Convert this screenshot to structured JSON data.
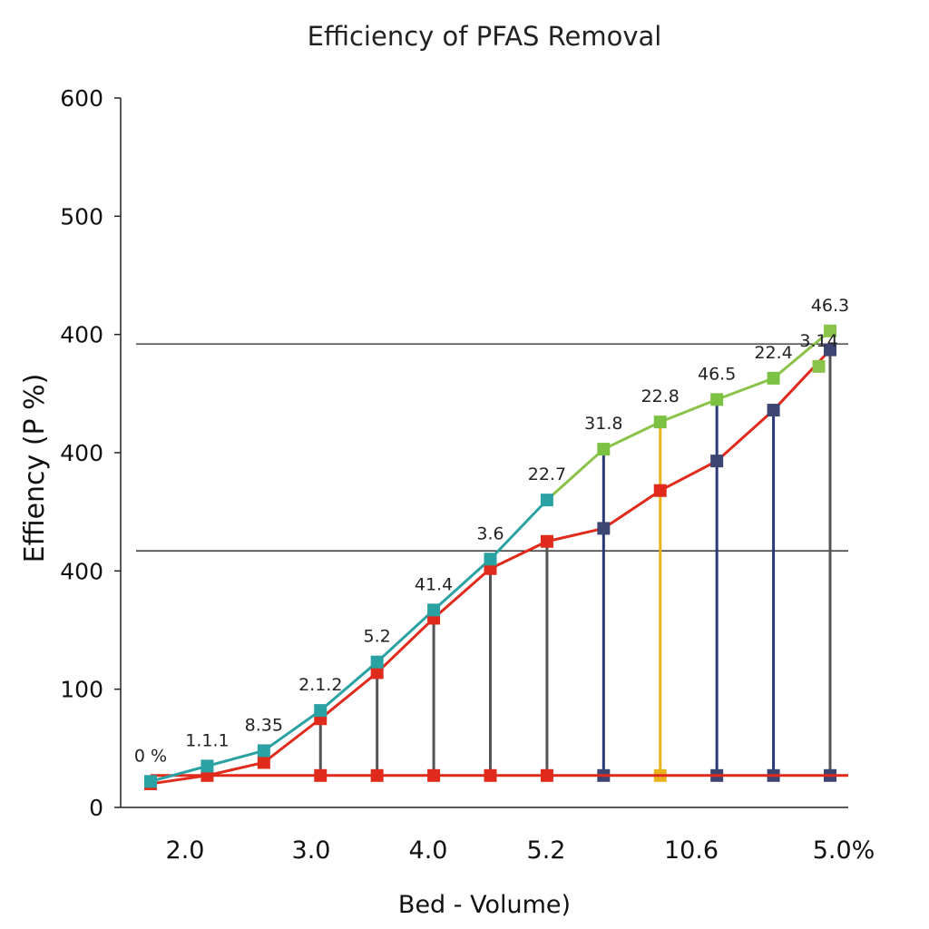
{
  "chart_data": {
    "type": "line",
    "title": "Efficiency of PFAS Removal",
    "xlabel": "Bed - Volume)",
    "ylabel": "Effiency (P %)",
    "x_tick_labels": [
      "2.0",
      "3.0",
      "4.0",
      "5.2",
      "10.6",
      "5.0%"
    ],
    "y_tick_labels": [
      "0",
      "100",
      "400",
      "400",
      "400",
      "500",
      "600"
    ],
    "ylim": [
      0,
      600
    ],
    "reference_lines": [
      392,
      217
    ],
    "grid": false,
    "legend": "none",
    "x": [
      1,
      2,
      3,
      4,
      5,
      6,
      7,
      8,
      9,
      10,
      11,
      12,
      13
    ],
    "series": [
      {
        "color": "#2aa1a3",
        "values": [
          22,
          35,
          48,
          82,
          123,
          167,
          210,
          260,
          null,
          null,
          null,
          null,
          null
        ]
      },
      {
        "color": "#8bc34a",
        "values": [
          null,
          null,
          null,
          null,
          null,
          null,
          null,
          260,
          303,
          326,
          345,
          363,
          403
        ]
      },
      {
        "color": "#e02a1c",
        "values": [
          20,
          27,
          38,
          75,
          114,
          160,
          202,
          225,
          236,
          268,
          293,
          336,
          387
        ]
      }
    ],
    "markers": [
      {
        "x": 1,
        "y": 20,
        "color": "#e02a1c"
      },
      {
        "x": 1,
        "y": 22,
        "color": "#2aa1a3"
      },
      {
        "x": 2,
        "y": 27,
        "color": "#e02a1c"
      },
      {
        "x": 2,
        "y": 35,
        "color": "#2aa1a3"
      },
      {
        "x": 3,
        "y": 38,
        "color": "#e02a1c"
      },
      {
        "x": 3,
        "y": 48,
        "color": "#2aa1a3"
      },
      {
        "x": 4,
        "y": 75,
        "color": "#e02a1c"
      },
      {
        "x": 4,
        "y": 82,
        "color": "#2aa1a3"
      },
      {
        "x": 5,
        "y": 114,
        "color": "#e02a1c"
      },
      {
        "x": 5,
        "y": 123,
        "color": "#2aa1a3"
      },
      {
        "x": 6,
        "y": 160,
        "color": "#e02a1c"
      },
      {
        "x": 6,
        "y": 167,
        "color": "#2aa1a3"
      },
      {
        "x": 7,
        "y": 202,
        "color": "#e02a1c"
      },
      {
        "x": 7,
        "y": 210,
        "color": "#2aa1a3"
      },
      {
        "x": 8,
        "y": 225,
        "color": "#e02a1c"
      },
      {
        "x": 8,
        "y": 260,
        "color": "#2aa1a3"
      },
      {
        "x": 9,
        "y": 236,
        "color": "#3d4672"
      },
      {
        "x": 9,
        "y": 303,
        "color": "#7cc242"
      },
      {
        "x": 10,
        "y": 268,
        "color": "#e02a1c"
      },
      {
        "x": 10,
        "y": 326,
        "color": "#7cc242"
      },
      {
        "x": 11,
        "y": 293,
        "color": "#3d4672"
      },
      {
        "x": 11,
        "y": 345,
        "color": "#7cc242"
      },
      {
        "x": 12,
        "y": 336,
        "color": "#3d4672"
      },
      {
        "x": 12,
        "y": 363,
        "color": "#7cc242"
      },
      {
        "x": 13,
        "y": 403,
        "color": "#8bc34a"
      },
      {
        "x": 13,
        "y": 387,
        "color": "#3d4672"
      },
      {
        "x": 12.8,
        "y": 373,
        "color": "#8bc34a"
      }
    ],
    "drop_lines": [
      {
        "x": 4,
        "top": 75,
        "color": "#555555",
        "foot_color": "#e02a1c"
      },
      {
        "x": 5,
        "top": 114,
        "color": "#555555",
        "foot_color": "#e02a1c"
      },
      {
        "x": 6,
        "top": 160,
        "color": "#555555",
        "foot_color": "#e02a1c"
      },
      {
        "x": 7,
        "top": 202,
        "color": "#555555",
        "foot_color": "#e02a1c"
      },
      {
        "x": 8,
        "top": 225,
        "color": "#555555",
        "foot_color": "#e02a1c"
      },
      {
        "x": 9,
        "top": 303,
        "color": "#2a3a78",
        "foot_color": "#3d4672"
      },
      {
        "x": 10,
        "top": 326,
        "color": "#e9b31d",
        "foot_color": "#e9b31d"
      },
      {
        "x": 11,
        "top": 345,
        "color": "#2a3a78",
        "foot_color": "#3d4672"
      },
      {
        "x": 12,
        "top": 336,
        "color": "#2a3a78",
        "foot_color": "#3d4672"
      },
      {
        "x": 13,
        "top": 387,
        "color": "#555555",
        "foot_color": "#3d4672"
      }
    ],
    "baseline": {
      "value": 27,
      "color": "#e02a1c"
    },
    "data_labels": [
      {
        "text": "0 %",
        "x": 1,
        "y": 22
      },
      {
        "text": "1.1.1",
        "x": 2,
        "y": 35
      },
      {
        "text": "8.35",
        "x": 3,
        "y": 48
      },
      {
        "text": "2.1.2",
        "x": 4,
        "y": 82
      },
      {
        "text": "5.2",
        "x": 5,
        "y": 123
      },
      {
        "text": "41.4",
        "x": 6,
        "y": 167
      },
      {
        "text": "3.6",
        "x": 7,
        "y": 210
      },
      {
        "text": "22.7",
        "x": 8,
        "y": 260
      },
      {
        "text": "31.8",
        "x": 9,
        "y": 303
      },
      {
        "text": "22.8",
        "x": 10,
        "y": 326
      },
      {
        "text": "46.5",
        "x": 11,
        "y": 345
      },
      {
        "text": "22.4",
        "x": 12,
        "y": 363
      },
      {
        "text": "3.14",
        "x": 12.8,
        "y": 373
      },
      {
        "text": "46.3",
        "x": 13,
        "y": 403
      }
    ]
  }
}
